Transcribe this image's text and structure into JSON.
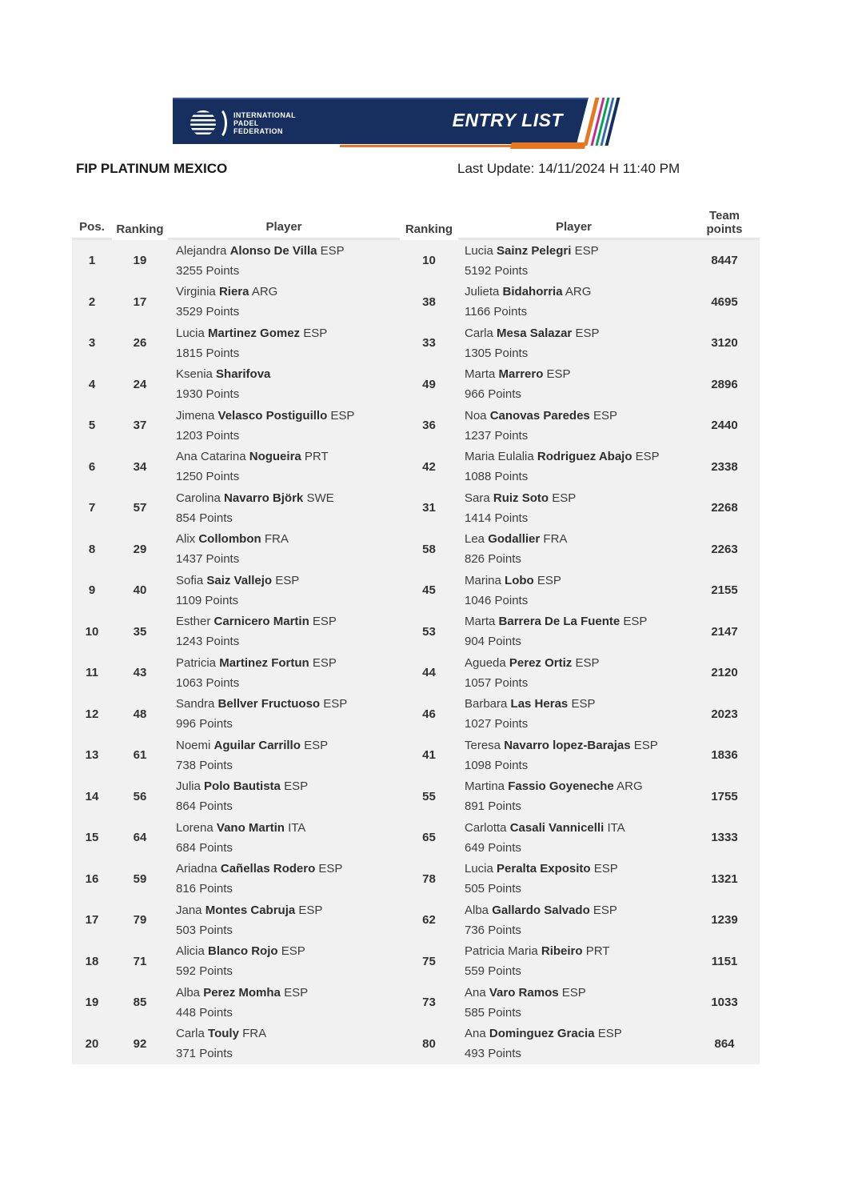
{
  "banner": {
    "logo_lines": [
      "INTERNATIONAL",
      "PADEL",
      "FEDERATION"
    ],
    "entry_list_label": "ENTRY LIST",
    "colors": {
      "navy": "#172f5f",
      "orange": "#e87722",
      "magenta": "#c02c92",
      "green": "#00a651",
      "blue": "#2b6cb5"
    }
  },
  "header": {
    "title": "FIP PLATINUM MEXICO",
    "last_update": "Last Update: 14/11/2024 H 11:40 PM"
  },
  "table": {
    "columns": [
      "Pos.",
      "Ranking",
      "Player",
      "Ranking",
      "Player",
      "Team points"
    ],
    "row_background": "#f1f1f1",
    "rows": [
      {
        "pos": "1",
        "ranking_a": "19",
        "player_a": {
          "first": "Alejandra",
          "last": "Alonso De Villa",
          "country": "ESP",
          "points": "3255 Points"
        },
        "ranking_b": "10",
        "player_b": {
          "first": "Lucia",
          "last": "Sainz Pelegri",
          "country": "ESP",
          "points": "5192 Points"
        },
        "team_points": "8447"
      },
      {
        "pos": "2",
        "ranking_a": "17",
        "player_a": {
          "first": "Virginia",
          "last": "Riera",
          "country": "ARG",
          "points": "3529 Points"
        },
        "ranking_b": "38",
        "player_b": {
          "first": "Julieta",
          "last": "Bidahorria",
          "country": "ARG",
          "points": "1166 Points"
        },
        "team_points": "4695"
      },
      {
        "pos": "3",
        "ranking_a": "26",
        "player_a": {
          "first": "Lucia",
          "last": "Martinez Gomez",
          "country": "ESP",
          "points": "1815 Points"
        },
        "ranking_b": "33",
        "player_b": {
          "first": "Carla",
          "last": "Mesa Salazar",
          "country": "ESP",
          "points": "1305 Points"
        },
        "team_points": "3120"
      },
      {
        "pos": "4",
        "ranking_a": "24",
        "player_a": {
          "first": "Ksenia",
          "last": "Sharifova",
          "country": "",
          "points": "1930 Points"
        },
        "ranking_b": "49",
        "player_b": {
          "first": "Marta",
          "last": "Marrero",
          "country": "ESP",
          "points": "966 Points"
        },
        "team_points": "2896"
      },
      {
        "pos": "5",
        "ranking_a": "37",
        "player_a": {
          "first": "Jimena",
          "last": "Velasco Postiguillo",
          "country": "ESP",
          "points": "1203 Points"
        },
        "ranking_b": "36",
        "player_b": {
          "first": "Noa",
          "last": "Canovas Paredes",
          "country": "ESP",
          "points": "1237 Points"
        },
        "team_points": "2440"
      },
      {
        "pos": "6",
        "ranking_a": "34",
        "player_a": {
          "first": "Ana Catarina",
          "last": "Nogueira",
          "country": "PRT",
          "points": "1250 Points"
        },
        "ranking_b": "42",
        "player_b": {
          "first": "Maria Eulalia",
          "last": "Rodriguez Abajo",
          "country": "ESP",
          "points": "1088 Points"
        },
        "team_points": "2338"
      },
      {
        "pos": "7",
        "ranking_a": "57",
        "player_a": {
          "first": "Carolina",
          "last": "Navarro Björk",
          "country": "SWE",
          "points": "854 Points"
        },
        "ranking_b": "31",
        "player_b": {
          "first": "Sara",
          "last": "Ruiz Soto",
          "country": "ESP",
          "points": "1414 Points"
        },
        "team_points": "2268"
      },
      {
        "pos": "8",
        "ranking_a": "29",
        "player_a": {
          "first": "Alix",
          "last": "Collombon",
          "country": "FRA",
          "points": "1437 Points"
        },
        "ranking_b": "58",
        "player_b": {
          "first": "Lea",
          "last": "Godallier",
          "country": "FRA",
          "points": "826 Points"
        },
        "team_points": "2263"
      },
      {
        "pos": "9",
        "ranking_a": "40",
        "player_a": {
          "first": "Sofia",
          "last": "Saiz Vallejo",
          "country": "ESP",
          "points": "1109 Points"
        },
        "ranking_b": "45",
        "player_b": {
          "first": "Marina",
          "last": "Lobo",
          "country": "ESP",
          "points": "1046 Points"
        },
        "team_points": "2155"
      },
      {
        "pos": "10",
        "ranking_a": "35",
        "player_a": {
          "first": "Esther",
          "last": "Carnicero Martin",
          "country": "ESP",
          "points": "1243 Points"
        },
        "ranking_b": "53",
        "player_b": {
          "first": "Marta",
          "last": "Barrera De La Fuente",
          "country": "ESP",
          "points": "904 Points"
        },
        "team_points": "2147"
      },
      {
        "pos": "11",
        "ranking_a": "43",
        "player_a": {
          "first": "Patricia",
          "last": "Martinez Fortun",
          "country": "ESP",
          "points": "1063 Points"
        },
        "ranking_b": "44",
        "player_b": {
          "first": "Agueda",
          "last": "Perez Ortiz",
          "country": "ESP",
          "points": "1057 Points"
        },
        "team_points": "2120"
      },
      {
        "pos": "12",
        "ranking_a": "48",
        "player_a": {
          "first": "Sandra",
          "last": "Bellver Fructuoso",
          "country": "ESP",
          "points": "996 Points"
        },
        "ranking_b": "46",
        "player_b": {
          "first": "Barbara",
          "last": "Las Heras",
          "country": "ESP",
          "points": "1027 Points"
        },
        "team_points": "2023"
      },
      {
        "pos": "13",
        "ranking_a": "61",
        "player_a": {
          "first": "Noemi",
          "last": "Aguilar Carrillo",
          "country": "ESP",
          "points": "738 Points"
        },
        "ranking_b": "41",
        "player_b": {
          "first": "Teresa",
          "last": "Navarro lopez-Barajas",
          "country": "ESP",
          "points": "1098 Points"
        },
        "team_points": "1836"
      },
      {
        "pos": "14",
        "ranking_a": "56",
        "player_a": {
          "first": "Julia",
          "last": "Polo Bautista",
          "country": "ESP",
          "points": "864 Points"
        },
        "ranking_b": "55",
        "player_b": {
          "first": "Martina",
          "last": "Fassio Goyeneche",
          "country": "ARG",
          "points": "891 Points"
        },
        "team_points": "1755"
      },
      {
        "pos": "15",
        "ranking_a": "64",
        "player_a": {
          "first": "Lorena",
          "last": "Vano Martin",
          "country": "ITA",
          "points": "684 Points"
        },
        "ranking_b": "65",
        "player_b": {
          "first": "Carlotta",
          "last": "Casali Vannicelli",
          "country": "ITA",
          "points": "649 Points"
        },
        "team_points": "1333"
      },
      {
        "pos": "16",
        "ranking_a": "59",
        "player_a": {
          "first": "Ariadna",
          "last": "Cañellas Rodero",
          "country": "ESP",
          "points": "816 Points"
        },
        "ranking_b": "78",
        "player_b": {
          "first": "Lucia",
          "last": "Peralta Exposito",
          "country": "ESP",
          "points": "505 Points"
        },
        "team_points": "1321"
      },
      {
        "pos": "17",
        "ranking_a": "79",
        "player_a": {
          "first": "Jana",
          "last": "Montes Cabruja",
          "country": "ESP",
          "points": "503 Points"
        },
        "ranking_b": "62",
        "player_b": {
          "first": "Alba",
          "last": "Gallardo Salvado",
          "country": "ESP",
          "points": "736 Points"
        },
        "team_points": "1239"
      },
      {
        "pos": "18",
        "ranking_a": "71",
        "player_a": {
          "first": "Alicia",
          "last": "Blanco Rojo",
          "country": "ESP",
          "points": "592 Points"
        },
        "ranking_b": "75",
        "player_b": {
          "first": "Patricia Maria",
          "last": "Ribeiro",
          "country": "PRT",
          "points": "559 Points"
        },
        "team_points": "1151"
      },
      {
        "pos": "19",
        "ranking_a": "85",
        "player_a": {
          "first": "Alba",
          "last": "Perez Momha",
          "country": "ESP",
          "points": "448 Points"
        },
        "ranking_b": "73",
        "player_b": {
          "first": "Ana",
          "last": "Varo Ramos",
          "country": "ESP",
          "points": "585 Points"
        },
        "team_points": "1033"
      },
      {
        "pos": "20",
        "ranking_a": "92",
        "player_a": {
          "first": "Carla",
          "last": "Touly",
          "country": "FRA",
          "points": "371 Points"
        },
        "ranking_b": "80",
        "player_b": {
          "first": "Ana",
          "last": "Dominguez Gracia",
          "country": "ESP",
          "points": "493 Points"
        },
        "team_points": "864"
      }
    ]
  }
}
